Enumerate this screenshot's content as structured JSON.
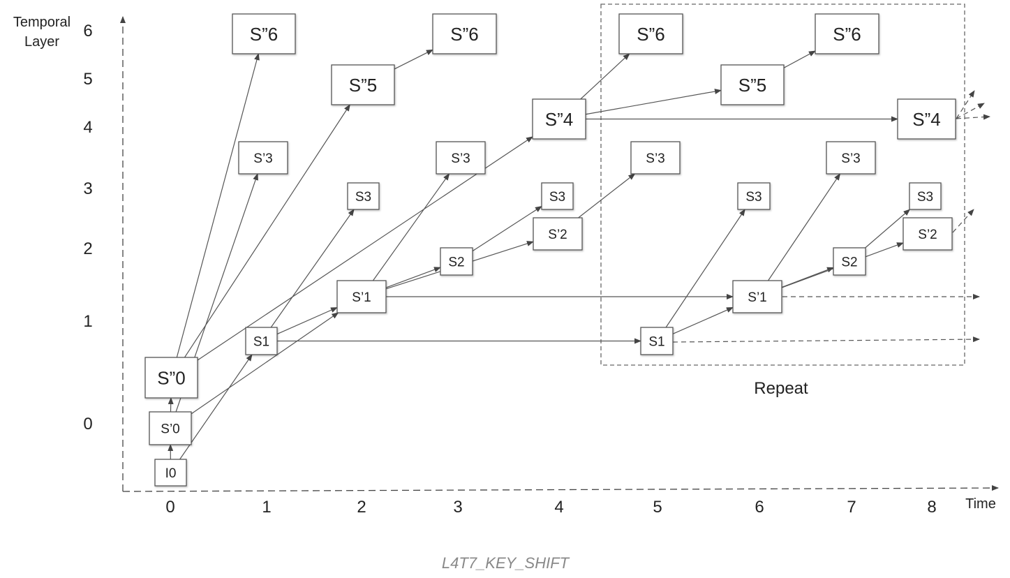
{
  "y_axis": {
    "title_line1": "Temporal",
    "title_line2": "Layer",
    "ticks": [
      "6",
      "5",
      "4",
      "3",
      "2",
      "1",
      "0"
    ]
  },
  "x_axis": {
    "title": "Time",
    "ticks": [
      "0",
      "1",
      "2",
      "3",
      "4",
      "5",
      "6",
      "7",
      "8"
    ]
  },
  "repeat_label": "Repeat",
  "caption": "L4T7_KEY_SHIFT",
  "frames": [
    {
      "id": "I0",
      "label": "I0",
      "size": "sm"
    },
    {
      "id": "Sp0",
      "label": "S’0",
      "size": "sm"
    },
    {
      "id": "Spp0",
      "label": "S”0",
      "size": "lg"
    },
    {
      "id": "S1a",
      "label": "S1",
      "size": "sm"
    },
    {
      "id": "Sp3a",
      "label": "S’3",
      "size": "sm"
    },
    {
      "id": "Spp6a",
      "label": "S”6",
      "size": "lg"
    },
    {
      "id": "S3a",
      "label": "S3",
      "size": "sm"
    },
    {
      "id": "Sp1a",
      "label": "S’1",
      "size": "sm"
    },
    {
      "id": "Spp5a",
      "label": "S”5",
      "size": "lg"
    },
    {
      "id": "S2a",
      "label": "S2",
      "size": "sm"
    },
    {
      "id": "Sp3b",
      "label": "S’3",
      "size": "sm"
    },
    {
      "id": "Spp6b",
      "label": "S”6",
      "size": "lg"
    },
    {
      "id": "S3b",
      "label": "S3",
      "size": "sm"
    },
    {
      "id": "Sp2a",
      "label": "S’2",
      "size": "sm"
    },
    {
      "id": "Spp4a",
      "label": "S”4",
      "size": "lg"
    },
    {
      "id": "S1b",
      "label": "S1",
      "size": "sm"
    },
    {
      "id": "Sp3c",
      "label": "S’3",
      "size": "sm"
    },
    {
      "id": "Spp6c",
      "label": "S”6",
      "size": "lg"
    },
    {
      "id": "S3c",
      "label": "S3",
      "size": "sm"
    },
    {
      "id": "Sp1b",
      "label": "S’1",
      "size": "sm"
    },
    {
      "id": "Spp5b",
      "label": "S”5",
      "size": "lg"
    },
    {
      "id": "S2b",
      "label": "S2",
      "size": "sm"
    },
    {
      "id": "Sp3d",
      "label": "S’3",
      "size": "sm"
    },
    {
      "id": "Spp6d",
      "label": "S”6",
      "size": "lg"
    },
    {
      "id": "S3d",
      "label": "S3",
      "size": "sm"
    },
    {
      "id": "Sp2b",
      "label": "S’2",
      "size": "sm"
    },
    {
      "id": "Spp4b",
      "label": "S”4",
      "size": "lg"
    }
  ],
  "edges": [
    [
      "I0",
      "Sp0"
    ],
    [
      "Sp0",
      "Spp0"
    ],
    [
      "I0",
      "S1a"
    ],
    [
      "Sp0",
      "Sp1a"
    ],
    [
      "Sp0",
      "Sp3a"
    ],
    [
      "Spp0",
      "Spp6a"
    ],
    [
      "Spp0",
      "Spp5a"
    ],
    [
      "Spp0",
      "Spp4a"
    ],
    [
      "S1a",
      "S3a"
    ],
    [
      "S1a",
      "Sp1a"
    ],
    [
      "S1a",
      "S1b"
    ],
    [
      "Spp5a",
      "Spp6b"
    ],
    [
      "Sp1a",
      "S2a"
    ],
    [
      "Sp1a",
      "Sp3b"
    ],
    [
      "Sp1a",
      "Sp2a"
    ],
    [
      "Sp1a",
      "Sp1b"
    ],
    [
      "S2a",
      "S3b"
    ],
    [
      "Sp2a",
      "Sp3c"
    ],
    [
      "Spp4a",
      "Spp6c"
    ],
    [
      "Spp4a",
      "Spp5b"
    ],
    [
      "Spp4a",
      "Spp4b"
    ],
    [
      "S1b",
      "S3c"
    ],
    [
      "S1b",
      "Sp1b"
    ],
    [
      "Spp5b",
      "Spp6d"
    ],
    [
      "Sp1b",
      "S2b"
    ],
    [
      "Sp1b",
      "Sp3d"
    ],
    [
      "Sp1b",
      "Sp2b"
    ],
    [
      "S2b",
      "S3d"
    ]
  ]
}
